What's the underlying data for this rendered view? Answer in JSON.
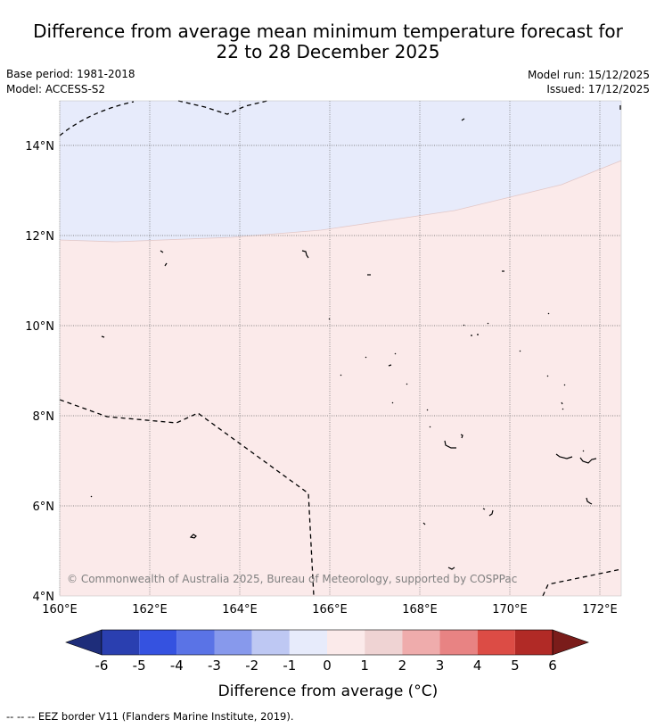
{
  "title": {
    "line1": "Difference from average mean minimum temperature forecast for",
    "line2": "22 to 28 December 2025"
  },
  "info": {
    "base_period": "Base period: 1981-2018",
    "model": "Model: ACCESS-S2",
    "model_run": "Model run: 15/12/2025",
    "issued": "Issued: 17/12/2025"
  },
  "map": {
    "lat_labels": [
      "14°N",
      "12°N",
      "10°N",
      "8°N",
      "6°N",
      "4°N"
    ],
    "lon_labels": [
      "160°E",
      "162°E",
      "164°E",
      "166°E",
      "168°E",
      "170°E",
      "172°E"
    ],
    "credit": "© Commonwealth of Australia 2025, Bureau of Meteorology, supported by COSPPac"
  },
  "colorbar": {
    "tick_labels": [
      "-6",
      "-5",
      "-4",
      "-3",
      "-2",
      "-1",
      "0",
      "1",
      "2",
      "3",
      "4",
      "5",
      "6"
    ],
    "label": "Difference from average (°C)",
    "colors": [
      "#1e2d7a",
      "#2a3fb0",
      "#3552e0",
      "#5a73e6",
      "#8799ec",
      "#bec8f3",
      "#e7ebfb",
      "#fbeaea",
      "#efd3d3",
      "#efacac",
      "#e88383",
      "#dc4c45",
      "#b12a26",
      "#7a1c1a"
    ]
  },
  "footer": "--  --  -- EEZ border V11 (Flanders Marine Institute, 2019)."
}
